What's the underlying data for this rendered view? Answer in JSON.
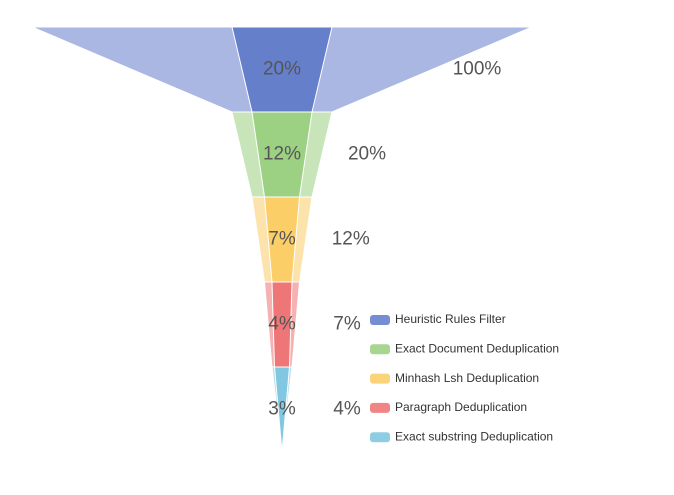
{
  "chart_data": {
    "type": "funnel",
    "categories": [
      "Heuristic Rules Filter",
      "Exact Document Deduplication",
      "Minhash Lsh Deduplication",
      "Paragraph Deduplication",
      "Exact substring Deduplication"
    ],
    "colors": [
      "#5470c6",
      "#91cc75",
      "#fac858",
      "#ee6666",
      "#73c0de"
    ],
    "series": [
      {
        "values": [
          100,
          20,
          12,
          7,
          4
        ],
        "value_labels": [
          "100%",
          "20%",
          "12%",
          "7%",
          "4%"
        ]
      },
      {
        "values": [
          20,
          12,
          7,
          4,
          3
        ],
        "value_labels": [
          "20%",
          "12%",
          "7%",
          "4%",
          "3%"
        ]
      }
    ],
    "legend": "right"
  }
}
